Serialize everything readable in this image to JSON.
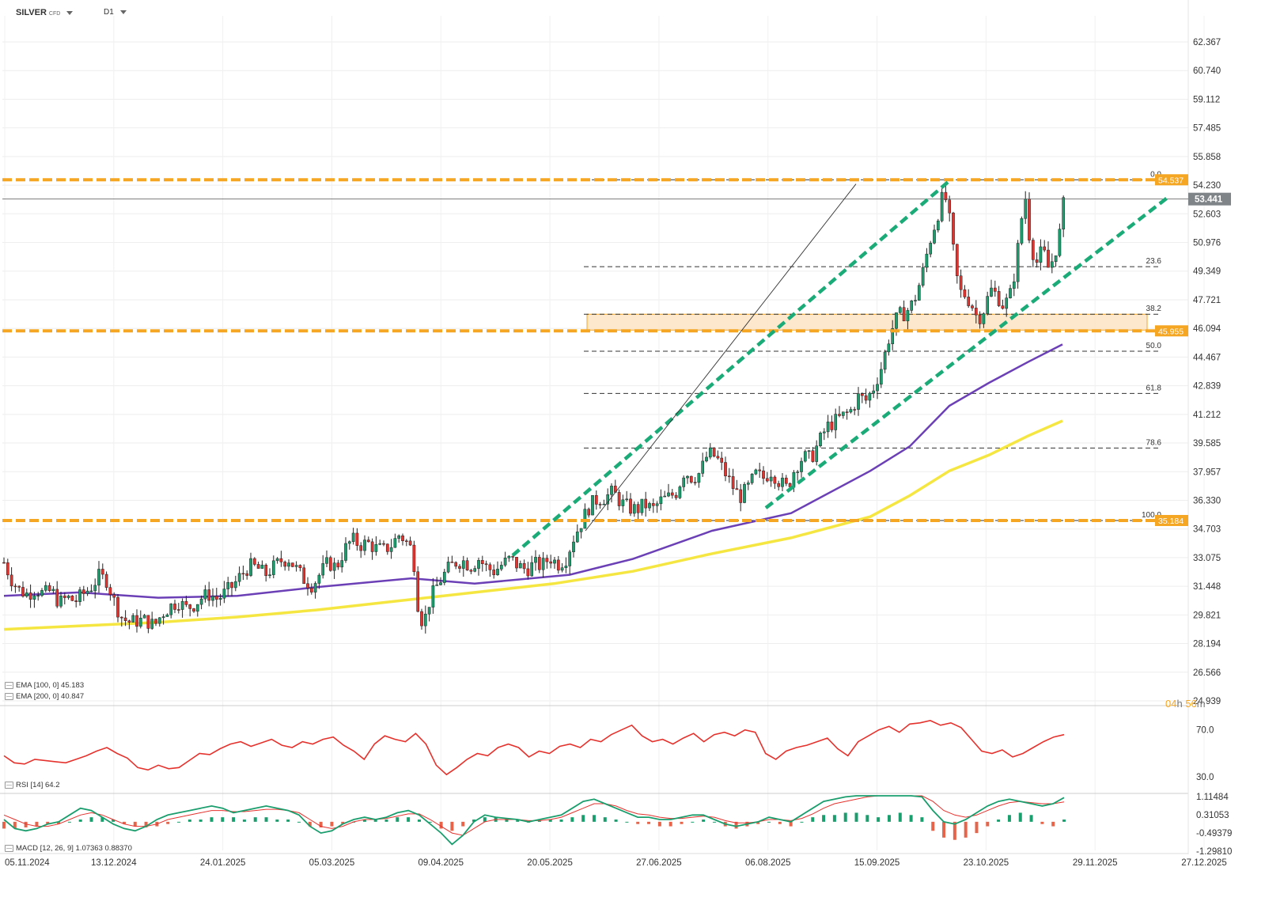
{
  "header": {
    "symbol": "SILVER",
    "symbol_tag": "CFD",
    "timeframe": "D1"
  },
  "timer": {
    "hours": "04",
    "h": "h",
    "minutes": "56",
    "m": "m"
  },
  "indicators": {
    "ema100": {
      "label": "EMA",
      "params": "[100, 0]",
      "value": "45.183",
      "color": "#6b3fb5"
    },
    "ema200": {
      "label": "EMA",
      "params": "[200, 0]",
      "value": "40.847",
      "color": "#f5e642"
    },
    "rsi": {
      "label": "RSI",
      "params": "[14]",
      "value": "64.2",
      "color": "#e5322d"
    },
    "macd": {
      "label": "MACD",
      "params": "[12, 26, 9]",
      "value1": "1.07363",
      "value2": "0.88370",
      "color_macd": "#1a9e6e",
      "color_signal": "#e5322d"
    }
  },
  "chart_data": [
    {
      "type": "candlestick",
      "price_axis_ticks": [
        "62.367",
        "60.740",
        "59.112",
        "57.485",
        "55.858",
        "54.230",
        "52.603",
        "50.976",
        "49.349",
        "47.721",
        "46.094",
        "44.467",
        "42.839",
        "41.212",
        "39.585",
        "37.957",
        "36.330",
        "34.703",
        "33.075",
        "31.448",
        "29.821",
        "28.194",
        "26.566",
        "24.939"
      ],
      "ylim": [
        24.939,
        62.367
      ],
      "date_axis_ticks": [
        "05.11.2024",
        "13.12.2024",
        "24.01.2025",
        "05.03.2025",
        "09.04.2025",
        "20.05.2025",
        "27.06.2025",
        "06.08.2025",
        "15.09.2025",
        "23.10.2025",
        "29.11.2025",
        "27.12.2025"
      ],
      "current_price": "53.441",
      "levels": [
        {
          "label": "54.537",
          "value": 54.537,
          "color": "#f5a623"
        },
        {
          "label": "45.955",
          "value": 45.955,
          "color": "#f5a623"
        },
        {
          "label": "35.184",
          "value": 35.184,
          "color": "#f5a623"
        }
      ],
      "fibonacci": [
        {
          "label": "0.0",
          "value": 54.537
        },
        {
          "label": "23.6",
          "value": 49.6
        },
        {
          "label": "38.2",
          "value": 46.9
        },
        {
          "label": "50.0",
          "value": 44.8
        },
        {
          "label": "61.8",
          "value": 42.4
        },
        {
          "label": "78.6",
          "value": 39.3
        },
        {
          "label": "100.0",
          "value": 35.184
        }
      ],
      "zone": {
        "low": 46.0,
        "high": 46.9
      },
      "close_path": [
        [
          5,
          32.8
        ],
        [
          15,
          31.8
        ],
        [
          25,
          31.2
        ],
        [
          35,
          31.0
        ],
        [
          45,
          31.3
        ],
        [
          55,
          31.0
        ],
        [
          65,
          31.2
        ],
        [
          75,
          30.5
        ],
        [
          85,
          30.8
        ],
        [
          95,
          30.6
        ],
        [
          105,
          31.0
        ],
        [
          115,
          31.4
        ],
        [
          125,
          32.0
        ],
        [
          135,
          31.8
        ],
        [
          145,
          30.5
        ],
        [
          155,
          29.6
        ],
        [
          165,
          29.4
        ],
        [
          175,
          29.5
        ],
        [
          185,
          29.5
        ],
        [
          195,
          29.2
        ],
        [
          205,
          29.9
        ],
        [
          215,
          30.3
        ],
        [
          225,
          30.6
        ],
        [
          235,
          30.2
        ],
        [
          245,
          30.4
        ],
        [
          255,
          30.8
        ],
        [
          265,
          31.0
        ],
        [
          275,
          30.7
        ],
        [
          285,
          31.1
        ],
        [
          295,
          31.5
        ],
        [
          305,
          32.1
        ],
        [
          315,
          32.6
        ],
        [
          325,
          32.5
        ],
        [
          335,
          32.1
        ],
        [
          345,
          32.5
        ],
        [
          355,
          32.9
        ],
        [
          365,
          33.0
        ],
        [
          375,
          32.4
        ],
        [
          385,
          31.8
        ],
        [
          395,
          31.5
        ],
        [
          405,
          32.2
        ],
        [
          415,
          32.8
        ],
        [
          425,
          32.5
        ],
        [
          435,
          33.5
        ],
        [
          445,
          34.1
        ],
        [
          455,
          33.8
        ],
        [
          465,
          33.9
        ],
        [
          475,
          33.6
        ],
        [
          485,
          33.5
        ],
        [
          495,
          33.8
        ],
        [
          505,
          34.4
        ],
        [
          515,
          33.9
        ],
        [
          522,
          33.4
        ],
        [
          528,
          30.5
        ],
        [
          535,
          29.2
        ],
        [
          542,
          30.5
        ],
        [
          550,
          31.3
        ],
        [
          558,
          31.9
        ],
        [
          566,
          32.4
        ],
        [
          575,
          32.8
        ],
        [
          585,
          32.9
        ],
        [
          595,
          32.6
        ],
        [
          605,
          33.0
        ],
        [
          615,
          32.5
        ],
        [
          625,
          32.3
        ],
        [
          635,
          32.7
        ],
        [
          645,
          33.0
        ],
        [
          655,
          32.6
        ],
        [
          665,
          32.4
        ],
        [
          675,
          32.7
        ],
        [
          685,
          32.6
        ],
        [
          695,
          33.1
        ],
        [
          705,
          32.7
        ],
        [
          715,
          33.0
        ],
        [
          725,
          34.2
        ],
        [
          735,
          35.1
        ],
        [
          745,
          36.0
        ],
        [
          755,
          36.4
        ],
        [
          765,
          36.5
        ],
        [
          775,
          36.8
        ],
        [
          785,
          36.2
        ],
        [
          795,
          35.9
        ],
        [
          805,
          35.8
        ],
        [
          815,
          36.1
        ],
        [
          825,
          35.8
        ],
        [
          835,
          36.3
        ],
        [
          845,
          36.5
        ],
        [
          855,
          36.8
        ],
        [
          865,
          38.0
        ],
        [
          875,
          37.6
        ],
        [
          885,
          37.9
        ],
        [
          895,
          39.0
        ],
        [
          905,
          38.8
        ],
        [
          915,
          38.0
        ],
        [
          925,
          37.2
        ],
        [
          935,
          36.5
        ],
        [
          945,
          37.0
        ],
        [
          955,
          37.8
        ],
        [
          965,
          37.6
        ],
        [
          975,
          38.0
        ],
        [
          985,
          37.4
        ],
        [
          995,
          37.0
        ],
        [
          1005,
          38.2
        ],
        [
          1015,
          38.8
        ],
        [
          1025,
          38.7
        ],
        [
          1035,
          39.6
        ],
        [
          1045,
          40.5
        ],
        [
          1055,
          40.8
        ],
        [
          1065,
          41.1
        ],
        [
          1075,
          41.4
        ],
        [
          1085,
          42.2
        ],
        [
          1095,
          42.0
        ],
        [
          1105,
          42.8
        ],
        [
          1115,
          44.0
        ],
        [
          1125,
          45.8
        ],
        [
          1135,
          46.8
        ],
        [
          1145,
          47.0
        ],
        [
          1155,
          47.6
        ],
        [
          1165,
          49.0
        ],
        [
          1175,
          51.0
        ],
        [
          1185,
          52.5
        ],
        [
          1193,
          53.8
        ],
        [
          1198,
          53.0
        ],
        [
          1205,
          50.5
        ],
        [
          1212,
          48.2
        ],
        [
          1220,
          48.0
        ],
        [
          1228,
          47.5
        ],
        [
          1236,
          46.6
        ],
        [
          1244,
          47.2
        ],
        [
          1252,
          48.3
        ],
        [
          1260,
          48.0
        ],
        [
          1268,
          47.4
        ],
        [
          1276,
          47.8
        ],
        [
          1284,
          49.6
        ],
        [
          1290,
          52.0
        ],
        [
          1296,
          53.6
        ],
        [
          1302,
          51.0
        ],
        [
          1310,
          49.8
        ],
        [
          1318,
          50.6
        ],
        [
          1326,
          49.4
        ],
        [
          1334,
          50.5
        ],
        [
          1340,
          51.6
        ],
        [
          1345,
          53.4
        ]
      ],
      "trendlines": [
        {
          "style": "dashed",
          "color": "#1bab78",
          "from": [
            648,
            33.2
          ],
          "to": [
            1198,
            54.4
          ]
        },
        {
          "style": "dashed",
          "color": "#1bab78",
          "from": [
            968,
            35.9
          ],
          "to": [
            1478,
            53.6
          ]
        },
        {
          "style": "solid",
          "color": "#333333",
          "from": [
            740,
            34.6
          ],
          "to": [
            1082,
            54.3
          ]
        }
      ],
      "ema100_path": [
        [
          5,
          30.9
        ],
        [
          100,
          31.1
        ],
        [
          200,
          30.8
        ],
        [
          300,
          30.9
        ],
        [
          400,
          31.4
        ],
        [
          520,
          31.9
        ],
        [
          600,
          31.6
        ],
        [
          720,
          32.1
        ],
        [
          800,
          33.0
        ],
        [
          900,
          34.6
        ],
        [
          1000,
          35.6
        ],
        [
          1100,
          38.0
        ],
        [
          1150,
          39.4
        ],
        [
          1200,
          41.7
        ],
        [
          1250,
          43.0
        ],
        [
          1300,
          44.2
        ],
        [
          1343,
          45.183
        ]
      ],
      "ema200_path": [
        [
          5,
          29.0
        ],
        [
          100,
          29.2
        ],
        [
          200,
          29.4
        ],
        [
          300,
          29.7
        ],
        [
          400,
          30.1
        ],
        [
          500,
          30.6
        ],
        [
          600,
          31.1
        ],
        [
          700,
          31.6
        ],
        [
          800,
          32.3
        ],
        [
          900,
          33.3
        ],
        [
          1000,
          34.2
        ],
        [
          1100,
          35.4
        ],
        [
          1150,
          36.6
        ],
        [
          1200,
          38.0
        ],
        [
          1250,
          38.9
        ],
        [
          1300,
          40.0
        ],
        [
          1343,
          40.847
        ]
      ]
    },
    {
      "type": "line",
      "name": "RSI",
      "ticks": [
        "70.0",
        "30.0"
      ],
      "ylim": [
        18,
        88
      ],
      "values": [
        48,
        42,
        41,
        45,
        44,
        43,
        42,
        45,
        48,
        52,
        55,
        50,
        46,
        38,
        36,
        40,
        37,
        38,
        44,
        50,
        49,
        54,
        58,
        60,
        56,
        59,
        62,
        57,
        55,
        60,
        58,
        62,
        64,
        57,
        52,
        45,
        58,
        65,
        62,
        60,
        67,
        58,
        40,
        32,
        38,
        45,
        50,
        48,
        55,
        58,
        55,
        47,
        52,
        50,
        56,
        58,
        55,
        62,
        60,
        66,
        70,
        74,
        65,
        60,
        62,
        58,
        63,
        67,
        60,
        66,
        68,
        65,
        70,
        68,
        50,
        45,
        52,
        55,
        57,
        60,
        63,
        54,
        48,
        60,
        65,
        70,
        73,
        68,
        75,
        76,
        78,
        74,
        76,
        72,
        62,
        52,
        50,
        53,
        47,
        50,
        55,
        60,
        64,
        66
      ]
    },
    {
      "type": "line+bar",
      "name": "MACD",
      "ticks": [
        "1.11484",
        "0.31053",
        "-0.49379",
        "-1.29810"
      ],
      "ylim": [
        -1.3,
        1.15
      ],
      "histogram": [
        -0.3,
        -0.3,
        -0.25,
        -0.2,
        -0.1,
        -0.1,
        0,
        0.1,
        0.2,
        0.2,
        0.1,
        -0.1,
        -0.2,
        -0.25,
        -0.2,
        -0.1,
        0,
        0.1,
        0.1,
        0.2,
        0.2,
        0.2,
        0.1,
        0.2,
        0.2,
        0.1,
        0.1,
        0,
        -0.2,
        -0.25,
        -0.2,
        -0.1,
        0,
        0.1,
        0.1,
        0.1,
        0.2,
        0.2,
        0.1,
        0,
        -0.3,
        -0.4,
        -0.2,
        0.1,
        0.2,
        0.2,
        0.15,
        0.1,
        0,
        0.05,
        0.1,
        0.1,
        0.2,
        0.3,
        0.3,
        0.2,
        0.1,
        0,
        -0.1,
        -0.1,
        -0.2,
        -0.2,
        -0.1,
        0,
        0.1,
        0,
        -0.2,
        -0.3,
        -0.2,
        -0.1,
        0,
        -0.1,
        -0.2,
        0,
        0.2,
        0.3,
        0.3,
        0.4,
        0.4,
        0.3,
        0.2,
        0.3,
        0.4,
        0.3,
        0.2,
        -0.4,
        -0.7,
        -0.8,
        -0.7,
        -0.5,
        -0.2,
        0.1,
        0.3,
        0.4,
        0.3,
        -0.1,
        -0.2,
        0.1
      ],
      "macd_line": [
        0.1,
        -0.3,
        -0.4,
        -0.3,
        -0.1,
        0,
        0.3,
        0.6,
        0.5,
        0.2,
        -0.1,
        -0.3,
        -0.4,
        -0.2,
        0.1,
        0.3,
        0.4,
        0.5,
        0.6,
        0.7,
        0.6,
        0.4,
        0.5,
        0.6,
        0.7,
        0.6,
        0.5,
        0.3,
        -0.2,
        -0.5,
        -0.4,
        -0.1,
        0.1,
        0.2,
        0.1,
        0.2,
        0.4,
        0.5,
        0.3,
        -0.1,
        -0.5,
        -1,
        -0.6,
        0,
        0.3,
        0.2,
        0.15,
        0.1,
        0,
        0.1,
        0.2,
        0.3,
        0.6,
        0.9,
        1,
        0.8,
        0.6,
        0.4,
        0.2,
        0.2,
        0.1,
        0.1,
        0.2,
        0.3,
        0.3,
        0.1,
        -0.1,
        -0.2,
        -0.1,
        0,
        0.2,
        0.1,
        0,
        0.3,
        0.6,
        0.9,
        1,
        1.1,
        1.2,
        1.3,
        1.2,
        1.3,
        1.4,
        1.3,
        1.1,
        0.5,
        0,
        -0.1,
        0.1,
        0.4,
        0.7,
        0.9,
        1,
        0.9,
        0.8,
        0.7,
        0.8,
        1.07
      ],
      "signal_line": [
        0.3,
        0.1,
        -0.1,
        -0.2,
        -0.2,
        -0.1,
        0.1,
        0.3,
        0.4,
        0.3,
        0.1,
        -0.1,
        -0.2,
        -0.2,
        -0.1,
        0.1,
        0.2,
        0.3,
        0.4,
        0.5,
        0.5,
        0.45,
        0.45,
        0.5,
        0.55,
        0.55,
        0.5,
        0.4,
        0.1,
        -0.2,
        -0.3,
        -0.2,
        0,
        0.1,
        0.1,
        0.15,
        0.25,
        0.35,
        0.35,
        0.1,
        -0.2,
        -0.5,
        -0.6,
        -0.3,
        0,
        0.1,
        0.1,
        0.1,
        0.05,
        0.05,
        0.1,
        0.2,
        0.4,
        0.6,
        0.8,
        0.8,
        0.7,
        0.5,
        0.35,
        0.3,
        0.2,
        0.15,
        0.15,
        0.2,
        0.25,
        0.2,
        0.05,
        -0.05,
        -0.05,
        0,
        0.1,
        0.1,
        0.05,
        0.15,
        0.35,
        0.6,
        0.8,
        0.9,
        1,
        1.1,
        1.15,
        1.2,
        1.3,
        1.3,
        1.2,
        0.9,
        0.5,
        0.3,
        0.2,
        0.3,
        0.5,
        0.7,
        0.85,
        0.9,
        0.85,
        0.8,
        0.8,
        0.88
      ]
    }
  ]
}
